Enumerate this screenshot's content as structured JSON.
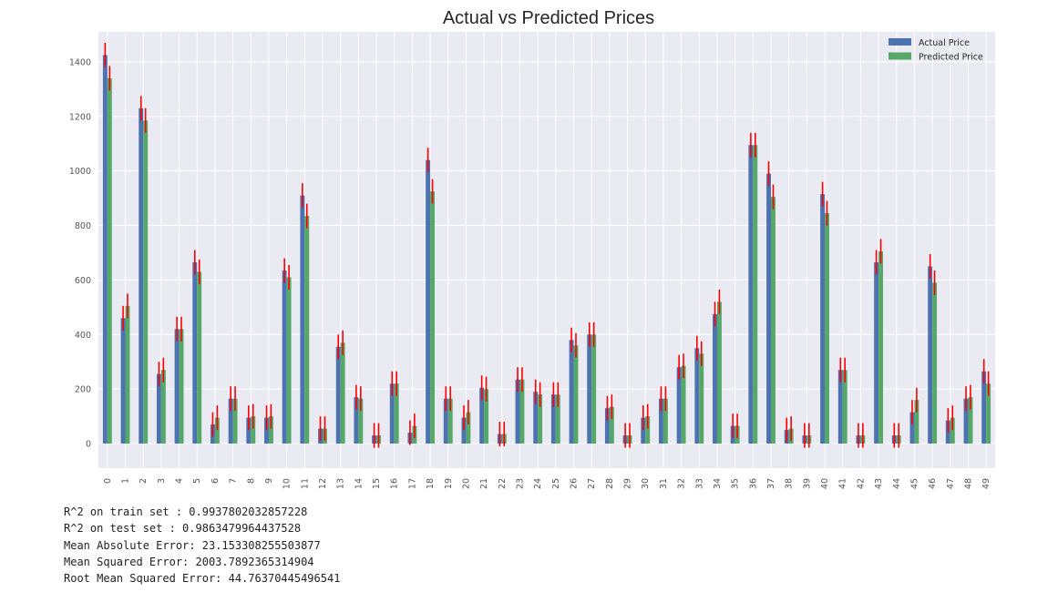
{
  "chart_data": {
    "type": "bar",
    "title": "Actual vs Predicted Prices",
    "xlabel": "",
    "ylabel": "",
    "ylim": [
      -90,
      1510
    ],
    "yticks": [
      0,
      200,
      400,
      600,
      800,
      1000,
      1200,
      1400
    ],
    "categories": [
      "0",
      "1",
      "2",
      "3",
      "4",
      "5",
      "6",
      "7",
      "8",
      "9",
      "10",
      "11",
      "12",
      "13",
      "14",
      "15",
      "16",
      "17",
      "18",
      "19",
      "20",
      "21",
      "22",
      "23",
      "24",
      "25",
      "26",
      "27",
      "28",
      "29",
      "30",
      "31",
      "32",
      "33",
      "34",
      "35",
      "36",
      "37",
      "38",
      "39",
      "40",
      "41",
      "42",
      "43",
      "44",
      "45",
      "46",
      "47",
      "48",
      "49"
    ],
    "series": [
      {
        "name": "Actual Price",
        "color": "#4c72b0",
        "values": [
          1425,
          460,
          1230,
          255,
          420,
          665,
          70,
          165,
          95,
          95,
          635,
          910,
          55,
          355,
          170,
          30,
          220,
          40,
          1040,
          165,
          95,
          205,
          35,
          235,
          190,
          180,
          380,
          400,
          130,
          30,
          95,
          165,
          280,
          350,
          475,
          65,
          1095,
          990,
          50,
          30,
          915,
          270,
          30,
          665,
          30,
          115,
          650,
          85,
          165,
          265
        ]
      },
      {
        "name": "Predicted Price",
        "color": "#55a868",
        "values": [
          1340,
          505,
          1185,
          270,
          420,
          630,
          95,
          165,
          100,
          100,
          610,
          835,
          55,
          370,
          165,
          30,
          220,
          65,
          925,
          165,
          115,
          200,
          35,
          235,
          180,
          180,
          360,
          400,
          135,
          30,
          100,
          165,
          285,
          330,
          520,
          65,
          1095,
          905,
          55,
          30,
          845,
          270,
          30,
          705,
          30,
          160,
          590,
          95,
          170,
          220
        ]
      }
    ],
    "error_color": "#ff0000",
    "grid": true,
    "background": "#eaeaf2",
    "legend_position": "top-right"
  },
  "metrics": [
    "R^2 on train set : 0.9937802032857228",
    "R^2 on test set : 0.9863479964437528",
    "Mean Absolute Error: 23.153308255503877",
    "Mean Squared Error: 2003.7892365314904",
    "Root Mean Squared Error: 44.76370445496541"
  ]
}
